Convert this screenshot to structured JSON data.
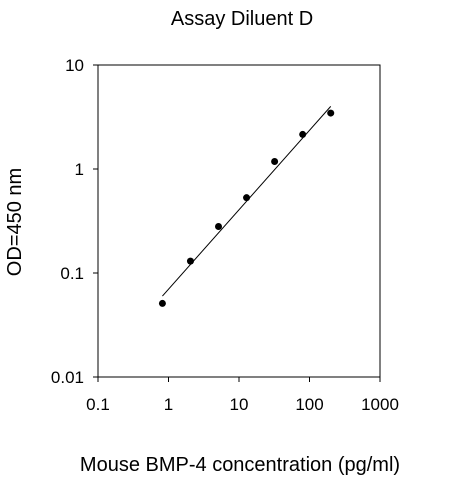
{
  "chart_data": {
    "type": "scatter",
    "title": "Assay Diluent D",
    "xlabel": "Mouse BMP-4 concentration (pg/ml)",
    "ylabel": "OD=450 nm",
    "x_scale": "log",
    "y_scale": "log",
    "xlim": [
      0.1,
      1000
    ],
    "ylim": [
      0.01,
      10
    ],
    "x_ticks": [
      "0.1",
      "1",
      "10",
      "100",
      "1000"
    ],
    "y_ticks": [
      "0.01",
      "0.1",
      "1",
      "10"
    ],
    "grid": false,
    "legend": "none",
    "colors": {
      "points": "#000000",
      "fit_line": "#000000",
      "axes": "#000000"
    },
    "series": [
      {
        "x": [
          0.82,
          2.05,
          5.12,
          12.8,
          32,
          80,
          200
        ],
        "y": [
          0.051,
          0.13,
          0.28,
          0.53,
          1.18,
          2.15,
          3.45
        ]
      }
    ],
    "fit_line": {
      "x": [
        0.82,
        200
      ],
      "y": [
        0.06,
        4.0
      ]
    }
  }
}
